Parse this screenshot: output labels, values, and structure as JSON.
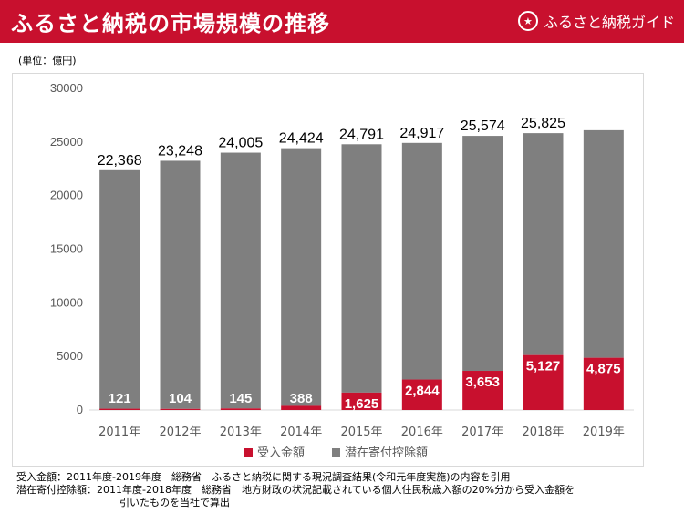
{
  "header": {
    "title": "ふるさと納税の市場規模の推移",
    "logo_text": "ふるさと納税ガイド",
    "logo_icon": "logo-icon"
  },
  "unit_label": "(単位：億円)",
  "colors": {
    "accepted": "#c8102e",
    "potential": "#7f7f7f",
    "header": "#c8102e"
  },
  "legend": {
    "accepted": "受入金額",
    "potential": "潜在寄付控除額"
  },
  "notes": {
    "line1": "受入金額：2011年度-2019年度　総務省　ふるさと納税に関する現況調査結果(令和元年度実施)の内容を引用",
    "line2": "潜在寄付控除額：2011年度-2018年度　総務省　地方財政の状況記載されている個人住民税歳入額の20%分から受入金額を",
    "line3": "引いたものを当社で算出"
  },
  "chart_data": {
    "type": "bar",
    "stacked": true,
    "categories": [
      "2011年",
      "2012年",
      "2013年",
      "2014年",
      "2015年",
      "2016年",
      "2017年",
      "2018年",
      "2019年"
    ],
    "series": [
      {
        "name": "受入金額",
        "values": [
          121,
          104,
          145,
          388,
          1625,
          2844,
          3653,
          5127,
          4875
        ]
      },
      {
        "name": "潜在寄付控除額",
        "values": [
          22247,
          23144,
          23860,
          24036,
          23166,
          22073,
          21921,
          20698,
          21225
        ]
      }
    ],
    "totals": [
      22368,
      23248,
      24005,
      24424,
      24791,
      24917,
      25574,
      25825,
      null
    ],
    "total_labels": [
      "22,368",
      "23,248",
      "24,005",
      "24,424",
      "24,791",
      "24,917",
      "25,574",
      "25,825",
      ""
    ],
    "accepted_labels": [
      "121",
      "104",
      "145",
      "388",
      "1,625",
      "2,844",
      "3,653",
      "5,127",
      "4,875"
    ],
    "yticks": [
      "0",
      "5000",
      "10000",
      "15000",
      "20000",
      "25000",
      "30000"
    ],
    "ylim": [
      0,
      30000
    ],
    "legend_position": "bottom",
    "grid": false
  }
}
